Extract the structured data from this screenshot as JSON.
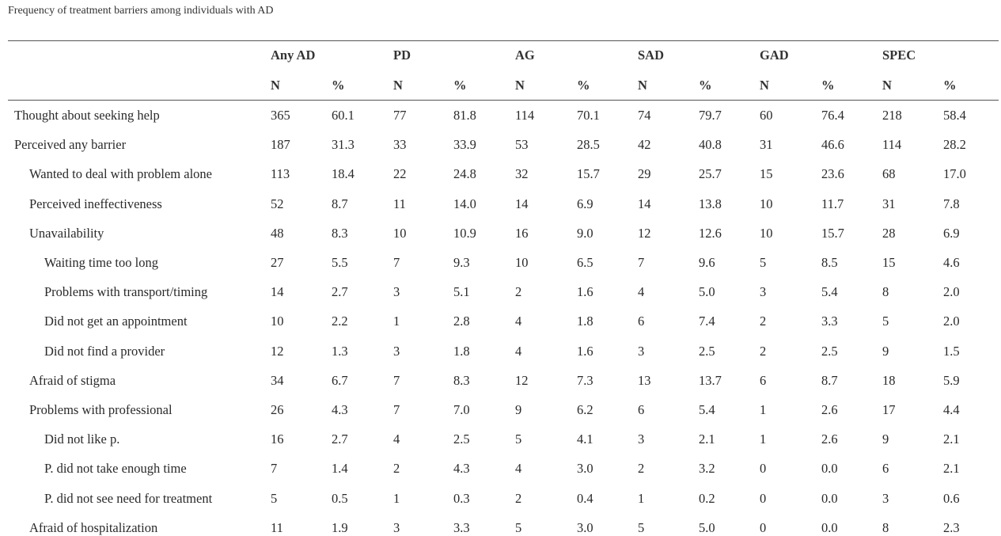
{
  "caption": "Frequency of treatment barriers among individuals with AD",
  "groups": [
    "Any AD",
    "PD",
    "AG",
    "SAD",
    "GAD",
    "SPEC"
  ],
  "subheaders": [
    "N",
    "%"
  ],
  "rows": [
    {
      "label": "Thought about seeking help",
      "indent": 0,
      "values": [
        "365",
        "60.1",
        "77",
        "81.8",
        "114",
        "70.1",
        "74",
        "79.7",
        "60",
        "76.4",
        "218",
        "58.4"
      ]
    },
    {
      "label": "Perceived any barrier",
      "indent": 0,
      "values": [
        "187",
        "31.3",
        "33",
        "33.9",
        "53",
        "28.5",
        "42",
        "40.8",
        "31",
        "46.6",
        "114",
        "28.2"
      ]
    },
    {
      "label": "Wanted to deal with problem alone",
      "indent": 1,
      "values": [
        "113",
        "18.4",
        "22",
        "24.8",
        "32",
        "15.7",
        "29",
        "25.7",
        "15",
        "23.6",
        "68",
        "17.0"
      ]
    },
    {
      "label": "Perceived ineffectiveness",
      "indent": 1,
      "values": [
        "52",
        "8.7",
        "11",
        "14.0",
        "14",
        "6.9",
        "14",
        "13.8",
        "10",
        "11.7",
        "31",
        "7.8"
      ]
    },
    {
      "label": "Unavailability",
      "indent": 1,
      "values": [
        "48",
        "8.3",
        "10",
        "10.9",
        "16",
        "9.0",
        "12",
        "12.6",
        "10",
        "15.7",
        "28",
        "6.9"
      ]
    },
    {
      "label": "Waiting time too long",
      "indent": 2,
      "values": [
        "27",
        "5.5",
        "7",
        "9.3",
        "10",
        "6.5",
        "7",
        "9.6",
        "5",
        "8.5",
        "15",
        "4.6"
      ]
    },
    {
      "label": "Problems with transport/timing",
      "indent": 2,
      "values": [
        "14",
        "2.7",
        "3",
        "5.1",
        "2",
        "1.6",
        "4",
        "5.0",
        "3",
        "5.4",
        "8",
        "2.0"
      ]
    },
    {
      "label": "Did not get an appointment",
      "indent": 2,
      "values": [
        "10",
        "2.2",
        "1",
        "2.8",
        "4",
        "1.8",
        "6",
        "7.4",
        "2",
        "3.3",
        "5",
        "2.0"
      ]
    },
    {
      "label": "Did not find a provider",
      "indent": 2,
      "values": [
        "12",
        "1.3",
        "3",
        "1.8",
        "4",
        "1.6",
        "3",
        "2.5",
        "2",
        "2.5",
        "9",
        "1.5"
      ]
    },
    {
      "label": "Afraid of stigma",
      "indent": 1,
      "values": [
        "34",
        "6.7",
        "7",
        "8.3",
        "12",
        "7.3",
        "13",
        "13.7",
        "6",
        "8.7",
        "18",
        "5.9"
      ]
    },
    {
      "label": "Problems with professional",
      "indent": 1,
      "values": [
        "26",
        "4.3",
        "7",
        "7.0",
        "9",
        "6.2",
        "6",
        "5.4",
        "1",
        "2.6",
        "17",
        "4.4"
      ]
    },
    {
      "label": "Did not like p.",
      "indent": 2,
      "values": [
        "16",
        "2.7",
        "4",
        "2.5",
        "5",
        "4.1",
        "3",
        "2.1",
        "1",
        "2.6",
        "9",
        "2.1"
      ]
    },
    {
      "label": "P. did not take enough time",
      "indent": 2,
      "values": [
        "7",
        "1.4",
        "2",
        "4.3",
        "4",
        "3.0",
        "2",
        "3.2",
        "0",
        "0.0",
        "6",
        "2.1"
      ]
    },
    {
      "label": "P. did not see need for treatment",
      "indent": 2,
      "values": [
        "5",
        "0.5",
        "1",
        "0.3",
        "2",
        "0.4",
        "1",
        "0.2",
        "0",
        "0.0",
        "3",
        "0.6"
      ]
    },
    {
      "label": "Afraid of hospitalization",
      "indent": 1,
      "values": [
        "11",
        "1.9",
        "3",
        "3.3",
        "5",
        "3.0",
        "5",
        "5.0",
        "0",
        "0.0",
        "8",
        "2.3"
      ]
    }
  ]
}
